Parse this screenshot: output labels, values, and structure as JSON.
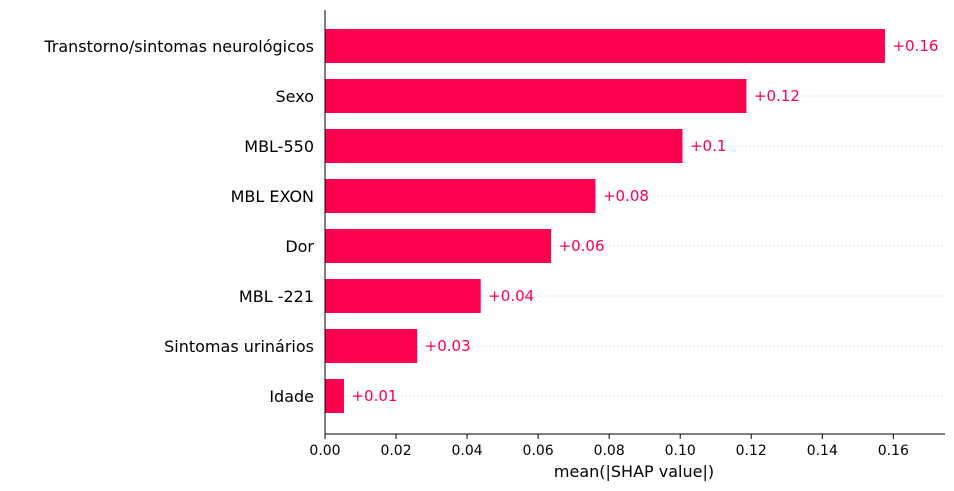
{
  "chart_data": {
    "type": "bar",
    "orientation": "horizontal",
    "categories": [
      "Transtorno/sintomas neurológicos",
      "Sexo",
      "MBL-550",
      "MBL EXON",
      "Dor",
      "MBL -221",
      "Sintomas urinários",
      "Idade"
    ],
    "values": [
      0.1575,
      0.1185,
      0.1005,
      0.076,
      0.0635,
      0.0437,
      0.0258,
      0.0052
    ],
    "value_labels": [
      "+0.16",
      "+0.12",
      "+0.1",
      "+0.08",
      "+0.06",
      "+0.04",
      "+0.03",
      "+0.01"
    ],
    "xlabel": "mean(|SHAP value|)",
    "ylabel": "",
    "xlim": [
      0,
      0.174
    ],
    "xticks": [
      "0.00",
      "0.02",
      "0.04",
      "0.06",
      "0.08",
      "0.10",
      "0.12",
      "0.14",
      "0.16"
    ],
    "grid": "dotted horizontal guide lines per bar",
    "bar_color": "#ff0051",
    "label_color": "#ff0051",
    "axis_color": "#000000"
  }
}
